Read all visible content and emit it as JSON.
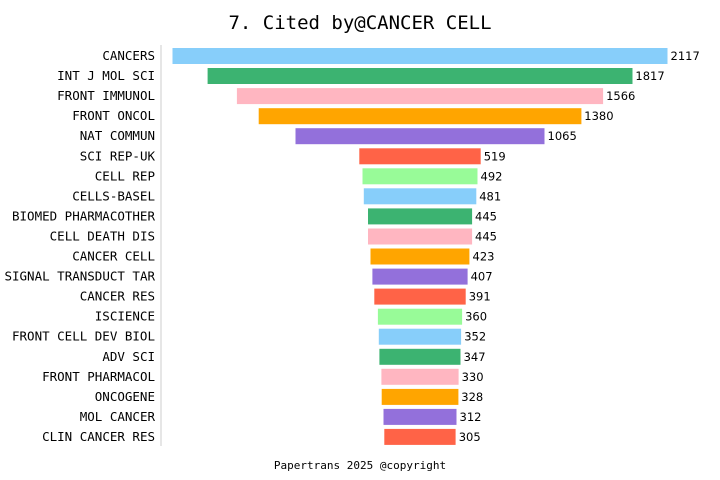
{
  "chart_data": {
    "type": "bar",
    "orientation": "horizontal",
    "layout": "centered-funnel",
    "title": "7. Cited by@CANCER CELL",
    "footer": "Papertrans 2025 @copyright",
    "categories": [
      "CANCERS",
      "INT J MOL SCI",
      "FRONT IMMUNOL",
      "FRONT ONCOL",
      "NAT COMMUN",
      "SCI REP-UK",
      "CELL REP",
      "CELLS-BASEL",
      "BIOMED PHARMACOTHER",
      "CELL DEATH DIS",
      "CANCER CELL",
      "SIGNAL TRANSDUCT TAR",
      "CANCER RES",
      "ISCIENCE",
      "FRONT CELL DEV BIOL",
      "ADV SCI",
      "FRONT PHARMACOL",
      "ONCOGENE",
      "MOL CANCER",
      "CLIN CANCER RES"
    ],
    "values": [
      2117,
      1817,
      1566,
      1380,
      1065,
      519,
      492,
      481,
      445,
      445,
      423,
      407,
      391,
      360,
      352,
      347,
      330,
      328,
      312,
      305
    ],
    "xlim": [
      0,
      2117
    ],
    "grid": false,
    "legend": "none",
    "colors": [
      "#87CEFA",
      "#3CB371",
      "#FFB6C1",
      "#FFA500",
      "#9370DB",
      "#FF6347",
      "#98FB98"
    ]
  }
}
